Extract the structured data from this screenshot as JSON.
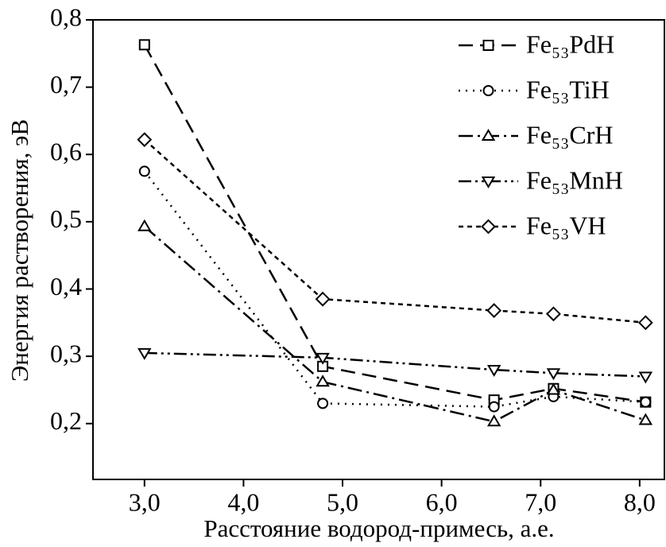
{
  "chart_data": {
    "type": "line",
    "xlabel": "Расстояние водород-примесь, а.е.",
    "ylabel": "Энергия растворения, эВ",
    "x": [
      3.0,
      4.8,
      6.53,
      7.13,
      8.06
    ],
    "series": [
      {
        "name": "Fe₅₃PdH",
        "color": "#000000",
        "marker": "square",
        "dash": "18 9",
        "values": [
          0.763,
          0.285,
          0.235,
          0.252,
          0.232
        ]
      },
      {
        "name": "Fe₅₃TiH",
        "color": "#000000",
        "marker": "circle",
        "dash": "2 7",
        "values": [
          0.575,
          0.23,
          0.225,
          0.24,
          0.232
        ]
      },
      {
        "name": "Fe₅₃CrH",
        "color": "#000000",
        "marker": "triangle-up",
        "dash": "18 6 3 6",
        "values": [
          0.493,
          0.262,
          0.203,
          0.25,
          0.205
        ]
      },
      {
        "name": "Fe₅₃MnH",
        "color": "#000000",
        "marker": "triangle-down",
        "dash": "16 5 3 5 3 5",
        "values": [
          0.305,
          0.298,
          0.28,
          0.275,
          0.27
        ]
      },
      {
        "name": "Fe₅₃VH",
        "color": "#000000",
        "marker": "diamond",
        "dash": "6 5",
        "values": [
          0.622,
          0.385,
          0.368,
          0.363,
          0.35
        ]
      }
    ],
    "xlim": [
      2.48,
      8.25
    ],
    "ylim": [
      0.117,
      0.8
    ],
    "xticks": [
      {
        "value": 3,
        "label": "3,0"
      },
      {
        "value": 4,
        "label": "4,0"
      },
      {
        "value": 5,
        "label": "5,0"
      },
      {
        "value": 6,
        "label": "6,0"
      },
      {
        "value": 7,
        "label": "7,0"
      },
      {
        "value": 8,
        "label": "8,0"
      }
    ],
    "yticks": [
      {
        "value": 0.2,
        "label": "0,2"
      },
      {
        "value": 0.3,
        "label": "0,3"
      },
      {
        "value": 0.4,
        "label": "0,4"
      },
      {
        "value": 0.5,
        "label": "0,5"
      },
      {
        "value": 0.6,
        "label": "0,6"
      },
      {
        "value": 0.7,
        "label": "0,7"
      },
      {
        "value": 0.8,
        "label": "0,8"
      }
    ],
    "legend": "upper right"
  }
}
